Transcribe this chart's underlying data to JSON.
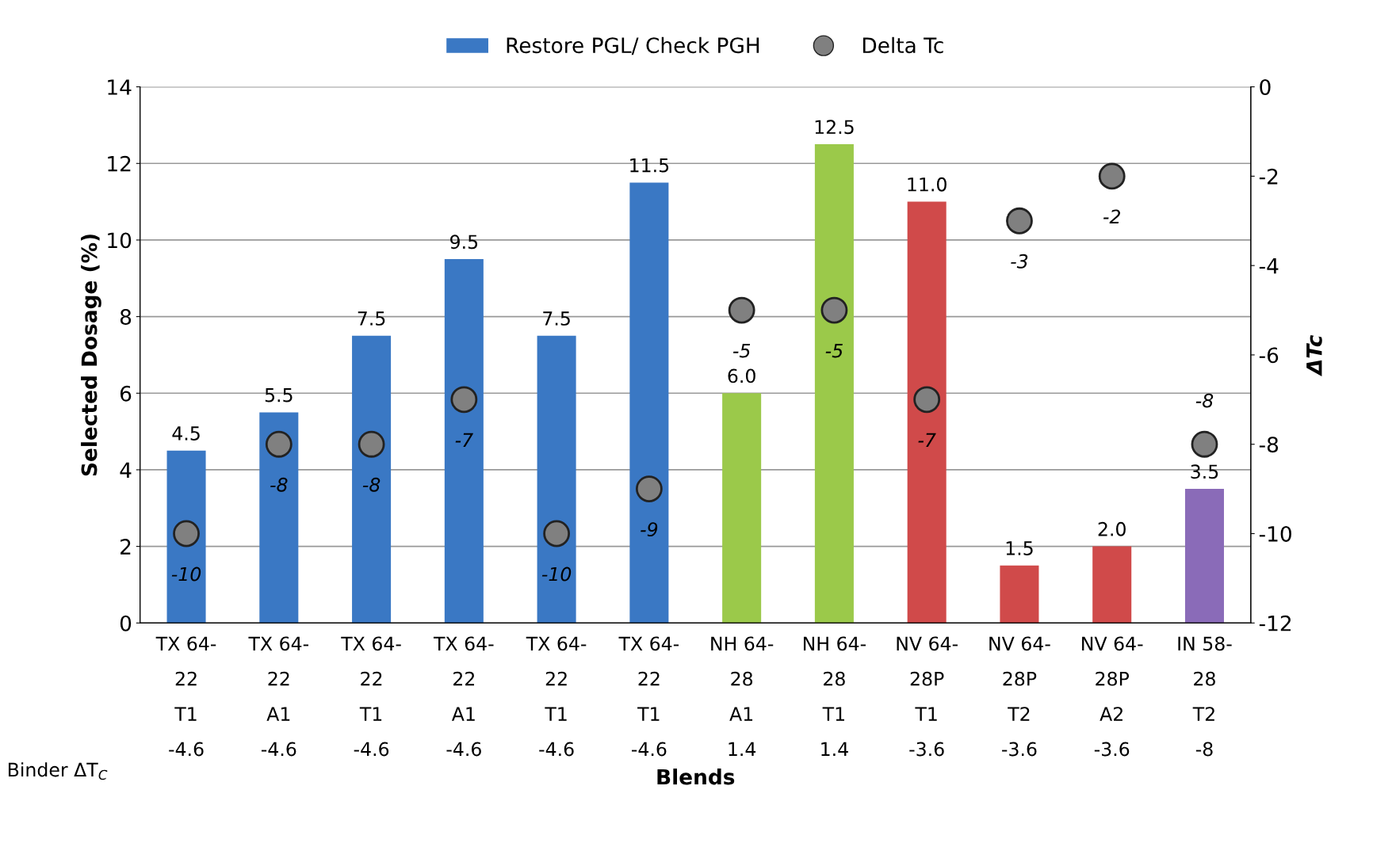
{
  "chart_data": {
    "type": "bar",
    "xlabel": "Blends",
    "ylabel": "Selected Dosage (%)",
    "y2label": "ΔTc",
    "categories": [
      "TX 64-\n22\nT1\n-4.6",
      "TX 64-\n22\nA1\n-4.6",
      "TX 64-\n22\nT1\n-4.6",
      "TX 64-\n22\nA1\n-4.6",
      "TX 64-\n22\nT1\n-4.6",
      "TX 64-\n22\nT1\n-4.6",
      "NH 64-\n28\nA1\n1.4",
      "NH 64-\n28\nT1\n1.4",
      "NV 64-\n28P\nT1\n-3.6",
      "NV 64-\n28P\nT2\n-3.6",
      "NV 64-\n28P\nA2\n-3.6",
      "IN 58-\n28\nT2\n-8"
    ],
    "series": [
      {
        "name": "Restore PGL/ Check PGH",
        "color": "#3a78c4",
        "colors": [
          "#3a78c4",
          "#3a78c4",
          "#3a78c4",
          "#3a78c4",
          "#3a78c4",
          "#3a78c4",
          "#9bc94a",
          "#9bc94a",
          "#d04a4a",
          "#d04a4a",
          "#d04a4a",
          "#8a6bb8"
        ],
        "values": [
          4.5,
          5.5,
          7.5,
          9.5,
          7.5,
          11.5,
          6.0,
          12.5,
          11.0,
          1.5,
          2.0,
          3.5
        ],
        "value_labels": [
          "4.5",
          "5.5",
          "7.5",
          "9.5",
          "7.5",
          "11.5",
          "6.0",
          "12.5",
          "11.0",
          "1.5",
          "2.0",
          "3.5"
        ]
      },
      {
        "name": "Delta Tc",
        "type": "scatter",
        "axis": "y2",
        "color": "#808080",
        "values": [
          -10,
          -8,
          -8,
          -7,
          -10,
          -9,
          -5,
          -5,
          -7,
          -3,
          -2,
          -8
        ],
        "value_labels": [
          "-10",
          "-8",
          "-8",
          "-7",
          "-10",
          "-9",
          "-5",
          "-5",
          "-7",
          "-3",
          "-2",
          "-8"
        ]
      }
    ],
    "ylim": [
      0,
      14
    ],
    "yticks": [
      0,
      2,
      4,
      6,
      8,
      10,
      12,
      14
    ],
    "y2lim": [
      -12,
      0
    ],
    "y2ticks": [
      -12,
      -10,
      -8,
      -6,
      -4,
      -2,
      0
    ],
    "grid": "y",
    "legend": "top",
    "marker": "circle",
    "annotations": [
      "Binder ΔT$_{C}$"
    ]
  }
}
